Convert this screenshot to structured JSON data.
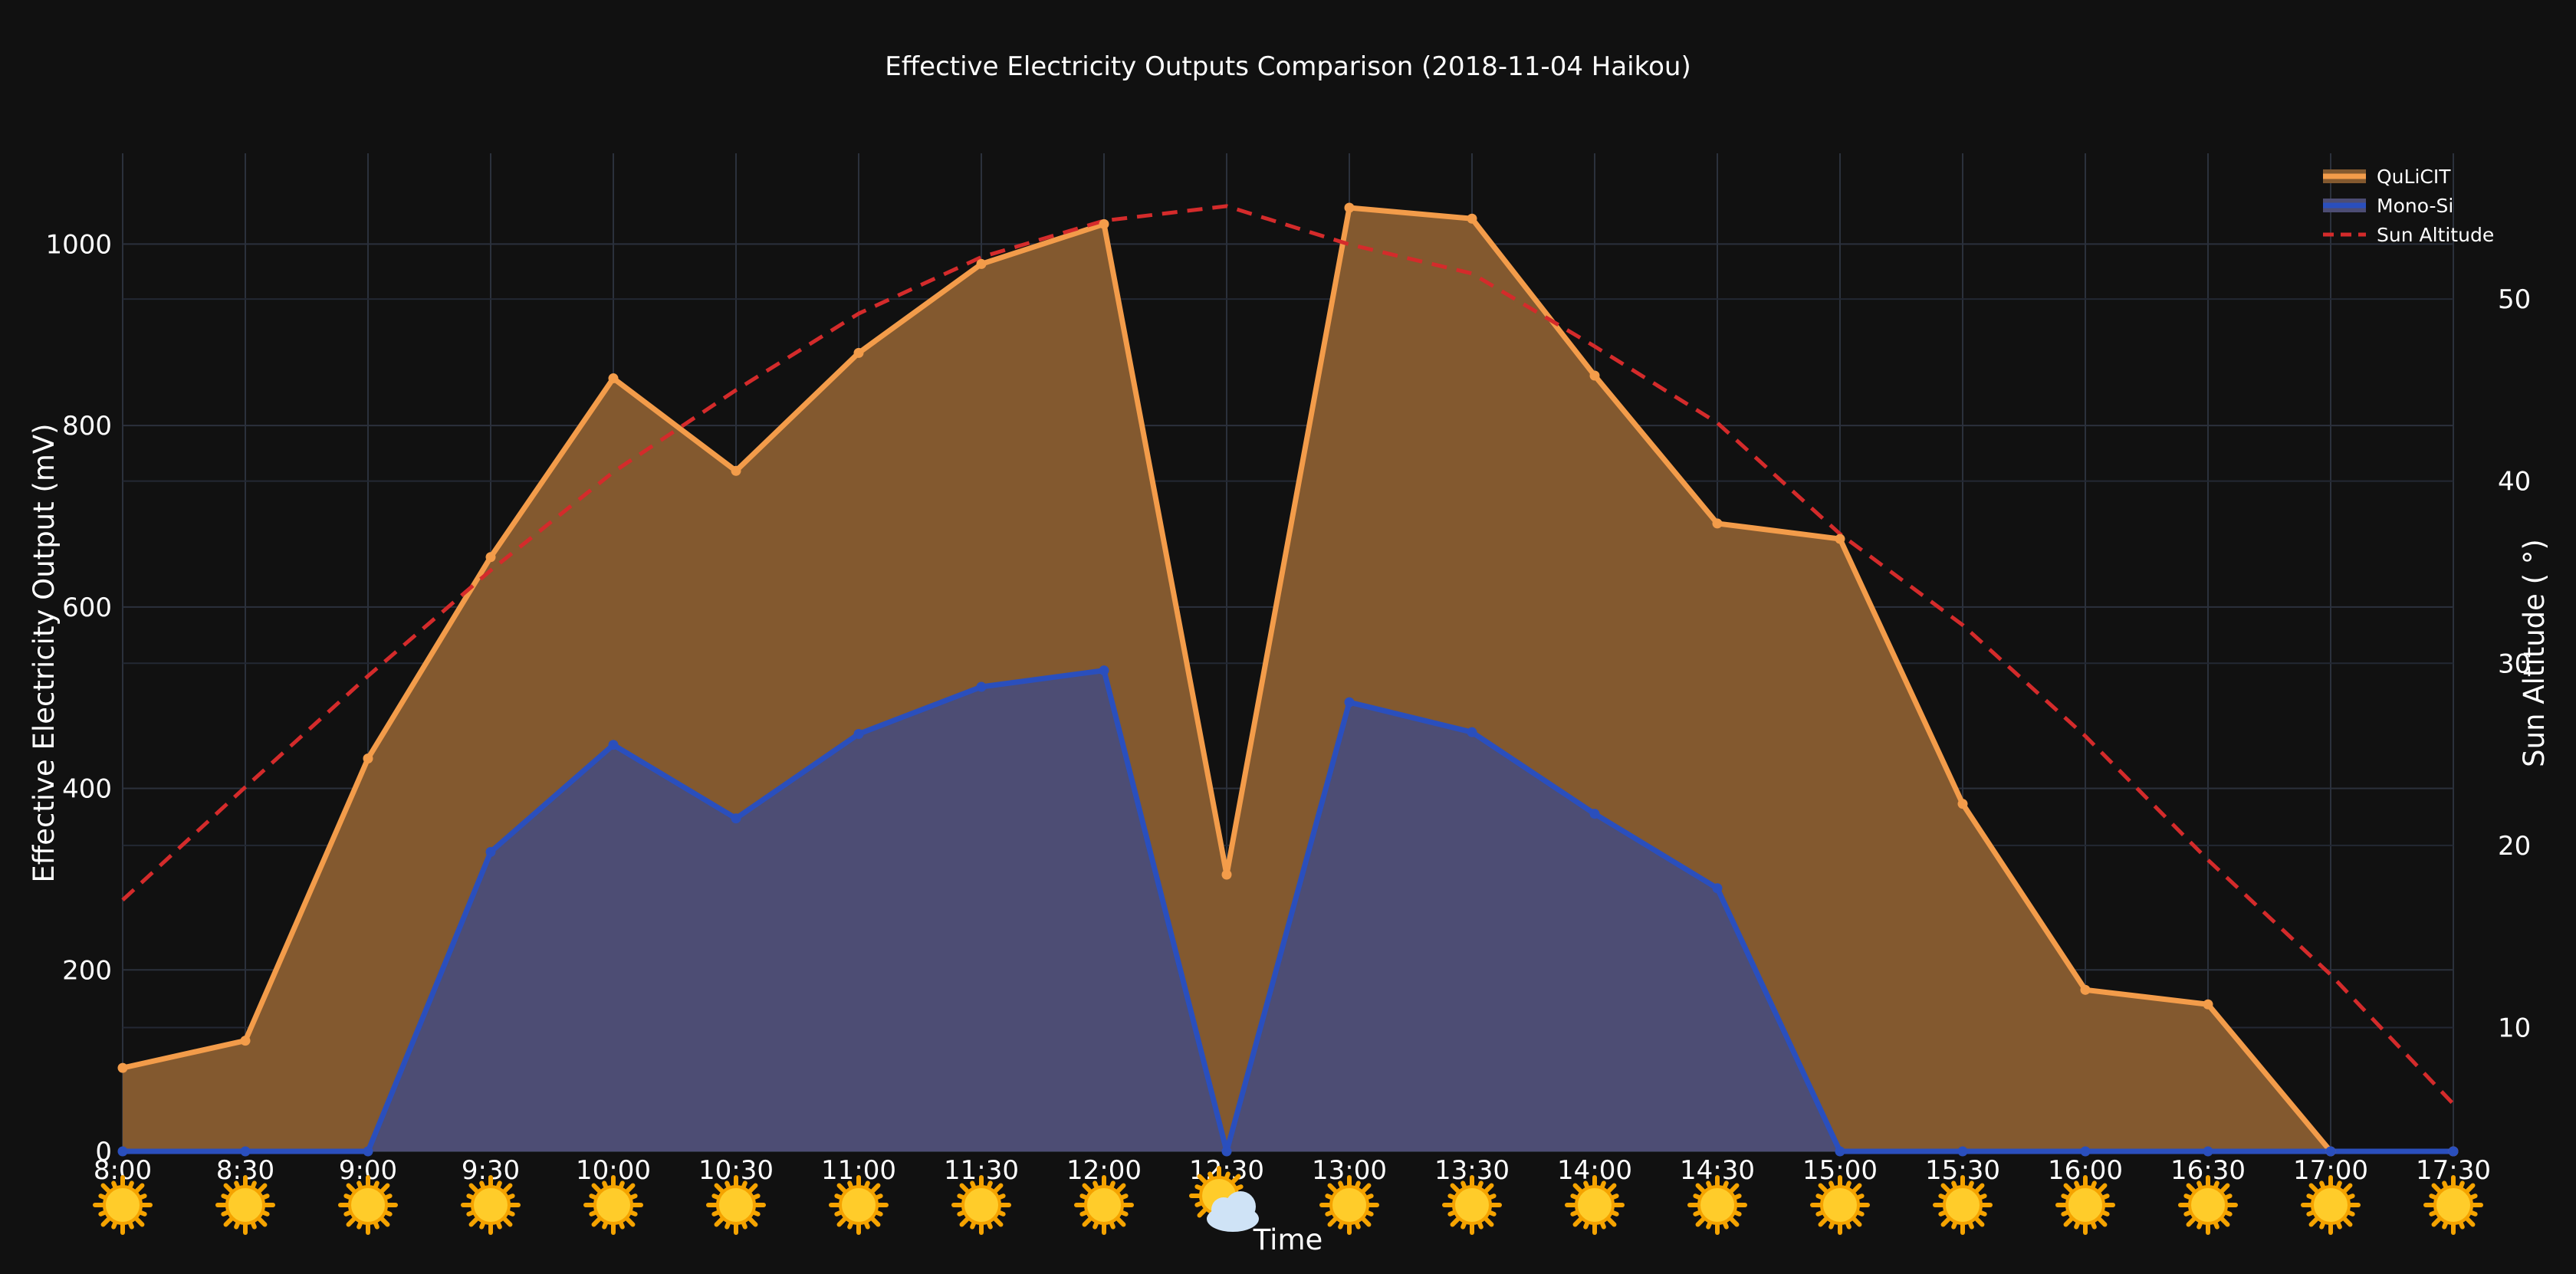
{
  "chart_data": {
    "type": "area",
    "title": "Effective Electricity Outputs Comparison (2018-11-04 Haikou)",
    "xlabel": "Time",
    "ylabel": "Effective Electricity Output  (mV)",
    "y2label": "Sun Altitude ( °)",
    "categories": [
      "8:00",
      "8:30",
      "9:00",
      "9:30",
      "10:00",
      "10:30",
      "11:00",
      "11:30",
      "12:00",
      "12:30",
      "13:00",
      "13:30",
      "14:00",
      "14:30",
      "15:00",
      "15:30",
      "16:00",
      "16:30",
      "17:00",
      "17:30"
    ],
    "weather": [
      "sun",
      "sun",
      "sun",
      "sun",
      "sun",
      "sun",
      "sun",
      "sun",
      "sun",
      "cloud",
      "sun",
      "sun",
      "sun",
      "sun",
      "sun",
      "sun",
      "sun",
      "sun",
      "sun",
      "sun"
    ],
    "ylim": [
      0,
      1100
    ],
    "yticks": [
      0,
      200,
      400,
      600,
      800,
      1000
    ],
    "y2lim": [
      3.2,
      58
    ],
    "y2ticks": [
      10,
      20,
      30,
      40,
      50
    ],
    "series": [
      {
        "name": "QuLiCIT",
        "axis": "y",
        "color": "#f39c4a",
        "fill": "#83592f",
        "values": [
          92,
          122,
          433,
          655,
          852,
          750,
          880,
          978,
          1022,
          305,
          1040,
          1028,
          855,
          692,
          675,
          383,
          178,
          162,
          0,
          0
        ]
      },
      {
        "name": "Mono-Si",
        "axis": "y",
        "color": "#2a4fbd",
        "fill": "#4d4d74",
        "values": [
          0,
          0,
          0,
          330,
          448,
          367,
          460,
          512,
          530,
          0,
          495,
          462,
          372,
          290,
          0,
          0,
          0,
          0,
          0,
          0
        ]
      },
      {
        "name": "Sun Altitude",
        "axis": "y2",
        "color": "#d42b2b",
        "dash": true,
        "values": [
          17.0,
          23.2,
          29.3,
          35.1,
          40.5,
          45.0,
          49.2,
          52.3,
          54.3,
          55.1,
          53.0,
          51.4,
          47.4,
          43.2,
          37.1,
          32.1,
          26.0,
          19.2,
          12.9,
          5.8
        ]
      }
    ],
    "legend_position": "top-right",
    "grid": true
  },
  "icons": {
    "sun": "sun-icon",
    "cloud": "sun-behind-cloud-icon"
  }
}
